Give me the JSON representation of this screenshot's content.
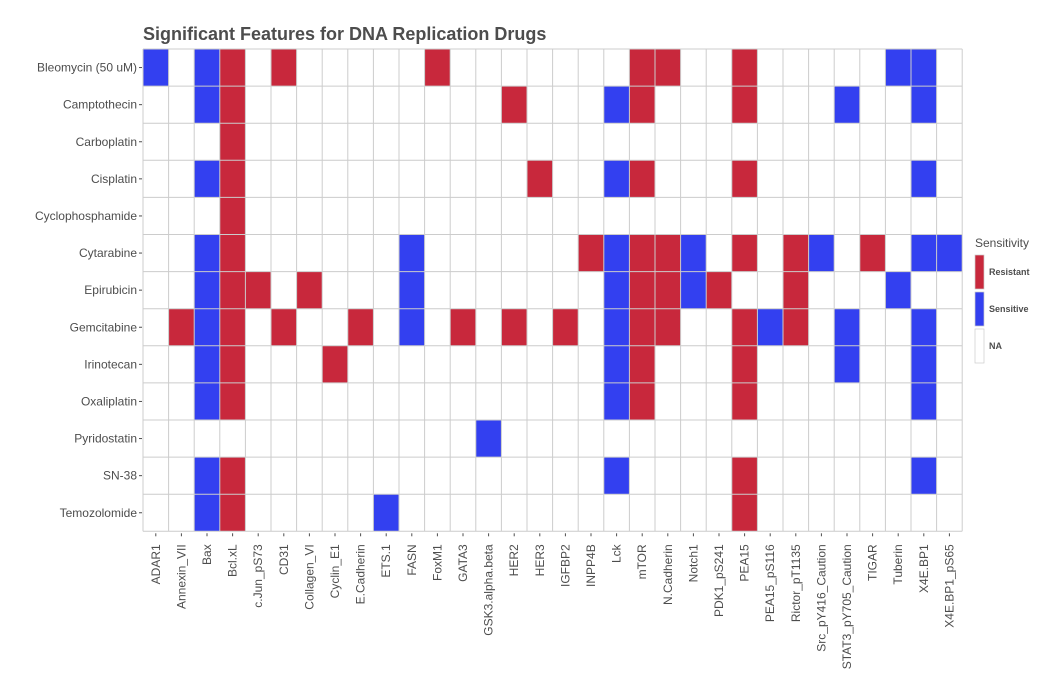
{
  "chart_data": {
    "type": "heatmap",
    "title": "Significant Features for DNA Replication Drugs",
    "xlabel": "",
    "ylabel": "",
    "rows": [
      "Bleomycin (50 uM)",
      "Camptothecin",
      "Carboplatin",
      "Cisplatin",
      "Cyclophosphamide",
      "Cytarabine",
      "Epirubicin",
      "Gemcitabine",
      "Irinotecan",
      "Oxaliplatin",
      "Pyridostatin",
      "SN-38",
      "Temozolomide"
    ],
    "columns": [
      "ADAR1",
      "Annexin_VII",
      "Bax",
      "Bcl.xL",
      "c.Jun_pS73",
      "CD31",
      "Collagen_VI",
      "Cyclin_E1",
      "E.Cadherin",
      "ETS.1",
      "FASN",
      "FoxM1",
      "GATA3",
      "GSK3.alpha.beta",
      "HER2",
      "HER3",
      "IGFBP2",
      "INPP4B",
      "Lck",
      "mTOR",
      "N.Cadherin",
      "Notch1",
      "PDK1_pS241",
      "PEA15",
      "PEA15_pS116",
      "Rictor_pT1135",
      "Src_pY416_Caution",
      "STAT3_pY705_Caution",
      "TIGAR",
      "Tuberin",
      "X4E.BP1",
      "X4E.BP1_pS65"
    ],
    "legend": {
      "title": "Sensitivity",
      "placement": "right",
      "entries": [
        {
          "label": "Resistant",
          "color": "#c8283c"
        },
        {
          "label": "Sensitive",
          "color": "#3340f0"
        },
        {
          "label": "NA",
          "color": "#ffffff"
        }
      ]
    },
    "grid": true,
    "cells": [
      {
        "row": "Bleomycin (50 uM)",
        "col": "ADAR1",
        "value": "Sensitive"
      },
      {
        "row": "Bleomycin (50 uM)",
        "col": "Bax",
        "value": "Sensitive"
      },
      {
        "row": "Bleomycin (50 uM)",
        "col": "Bcl.xL",
        "value": "Resistant"
      },
      {
        "row": "Bleomycin (50 uM)",
        "col": "CD31",
        "value": "Resistant"
      },
      {
        "row": "Bleomycin (50 uM)",
        "col": "FoxM1",
        "value": "Resistant"
      },
      {
        "row": "Bleomycin (50 uM)",
        "col": "mTOR",
        "value": "Resistant"
      },
      {
        "row": "Bleomycin (50 uM)",
        "col": "N.Cadherin",
        "value": "Resistant"
      },
      {
        "row": "Bleomycin (50 uM)",
        "col": "PEA15",
        "value": "Resistant"
      },
      {
        "row": "Bleomycin (50 uM)",
        "col": "Tuberin",
        "value": "Sensitive"
      },
      {
        "row": "Bleomycin (50 uM)",
        "col": "X4E.BP1",
        "value": "Sensitive"
      },
      {
        "row": "Camptothecin",
        "col": "Bax",
        "value": "Sensitive"
      },
      {
        "row": "Camptothecin",
        "col": "Bcl.xL",
        "value": "Resistant"
      },
      {
        "row": "Camptothecin",
        "col": "HER2",
        "value": "Resistant"
      },
      {
        "row": "Camptothecin",
        "col": "Lck",
        "value": "Sensitive"
      },
      {
        "row": "Camptothecin",
        "col": "mTOR",
        "value": "Resistant"
      },
      {
        "row": "Camptothecin",
        "col": "PEA15",
        "value": "Resistant"
      },
      {
        "row": "Camptothecin",
        "col": "STAT3_pY705_Caution",
        "value": "Sensitive"
      },
      {
        "row": "Camptothecin",
        "col": "X4E.BP1",
        "value": "Sensitive"
      },
      {
        "row": "Carboplatin",
        "col": "Bcl.xL",
        "value": "Resistant"
      },
      {
        "row": "Cisplatin",
        "col": "Bax",
        "value": "Sensitive"
      },
      {
        "row": "Cisplatin",
        "col": "Bcl.xL",
        "value": "Resistant"
      },
      {
        "row": "Cisplatin",
        "col": "HER3",
        "value": "Resistant"
      },
      {
        "row": "Cisplatin",
        "col": "Lck",
        "value": "Sensitive"
      },
      {
        "row": "Cisplatin",
        "col": "mTOR",
        "value": "Resistant"
      },
      {
        "row": "Cisplatin",
        "col": "PEA15",
        "value": "Resistant"
      },
      {
        "row": "Cisplatin",
        "col": "X4E.BP1",
        "value": "Sensitive"
      },
      {
        "row": "Cyclophosphamide",
        "col": "Bcl.xL",
        "value": "Resistant"
      },
      {
        "row": "Cytarabine",
        "col": "Bax",
        "value": "Sensitive"
      },
      {
        "row": "Cytarabine",
        "col": "Bcl.xL",
        "value": "Resistant"
      },
      {
        "row": "Cytarabine",
        "col": "FASN",
        "value": "Sensitive"
      },
      {
        "row": "Cytarabine",
        "col": "INPP4B",
        "value": "Resistant"
      },
      {
        "row": "Cytarabine",
        "col": "Lck",
        "value": "Sensitive"
      },
      {
        "row": "Cytarabine",
        "col": "mTOR",
        "value": "Resistant"
      },
      {
        "row": "Cytarabine",
        "col": "N.Cadherin",
        "value": "Resistant"
      },
      {
        "row": "Cytarabine",
        "col": "Notch1",
        "value": "Sensitive"
      },
      {
        "row": "Cytarabine",
        "col": "PEA15",
        "value": "Resistant"
      },
      {
        "row": "Cytarabine",
        "col": "Rictor_pT1135",
        "value": "Resistant"
      },
      {
        "row": "Cytarabine",
        "col": "Src_pY416_Caution",
        "value": "Sensitive"
      },
      {
        "row": "Cytarabine",
        "col": "TIGAR",
        "value": "Resistant"
      },
      {
        "row": "Cytarabine",
        "col": "X4E.BP1",
        "value": "Sensitive"
      },
      {
        "row": "Cytarabine",
        "col": "X4E.BP1_pS65",
        "value": "Sensitive"
      },
      {
        "row": "Epirubicin",
        "col": "Bax",
        "value": "Sensitive"
      },
      {
        "row": "Epirubicin",
        "col": "Bcl.xL",
        "value": "Resistant"
      },
      {
        "row": "Epirubicin",
        "col": "c.Jun_pS73",
        "value": "Resistant"
      },
      {
        "row": "Epirubicin",
        "col": "Collagen_VI",
        "value": "Resistant"
      },
      {
        "row": "Epirubicin",
        "col": "FASN",
        "value": "Sensitive"
      },
      {
        "row": "Epirubicin",
        "col": "Lck",
        "value": "Sensitive"
      },
      {
        "row": "Epirubicin",
        "col": "mTOR",
        "value": "Resistant"
      },
      {
        "row": "Epirubicin",
        "col": "N.Cadherin",
        "value": "Resistant"
      },
      {
        "row": "Epirubicin",
        "col": "Notch1",
        "value": "Sensitive"
      },
      {
        "row": "Epirubicin",
        "col": "PDK1_pS241",
        "value": "Resistant"
      },
      {
        "row": "Epirubicin",
        "col": "Rictor_pT1135",
        "value": "Resistant"
      },
      {
        "row": "Epirubicin",
        "col": "Tuberin",
        "value": "Sensitive"
      },
      {
        "row": "Gemcitabine",
        "col": "Annexin_VII",
        "value": "Resistant"
      },
      {
        "row": "Gemcitabine",
        "col": "Bax",
        "value": "Sensitive"
      },
      {
        "row": "Gemcitabine",
        "col": "Bcl.xL",
        "value": "Resistant"
      },
      {
        "row": "Gemcitabine",
        "col": "CD31",
        "value": "Resistant"
      },
      {
        "row": "Gemcitabine",
        "col": "E.Cadherin",
        "value": "Resistant"
      },
      {
        "row": "Gemcitabine",
        "col": "FASN",
        "value": "Sensitive"
      },
      {
        "row": "Gemcitabine",
        "col": "GATA3",
        "value": "Resistant"
      },
      {
        "row": "Gemcitabine",
        "col": "HER2",
        "value": "Resistant"
      },
      {
        "row": "Gemcitabine",
        "col": "IGFBP2",
        "value": "Resistant"
      },
      {
        "row": "Gemcitabine",
        "col": "Lck",
        "value": "Sensitive"
      },
      {
        "row": "Gemcitabine",
        "col": "mTOR",
        "value": "Resistant"
      },
      {
        "row": "Gemcitabine",
        "col": "N.Cadherin",
        "value": "Resistant"
      },
      {
        "row": "Gemcitabine",
        "col": "PEA15",
        "value": "Resistant"
      },
      {
        "row": "Gemcitabine",
        "col": "PEA15_pS116",
        "value": "Sensitive"
      },
      {
        "row": "Gemcitabine",
        "col": "Rictor_pT1135",
        "value": "Resistant"
      },
      {
        "row": "Gemcitabine",
        "col": "STAT3_pY705_Caution",
        "value": "Sensitive"
      },
      {
        "row": "Gemcitabine",
        "col": "X4E.BP1",
        "value": "Sensitive"
      },
      {
        "row": "Irinotecan",
        "col": "Bax",
        "value": "Sensitive"
      },
      {
        "row": "Irinotecan",
        "col": "Bcl.xL",
        "value": "Resistant"
      },
      {
        "row": "Irinotecan",
        "col": "Cyclin_E1",
        "value": "Resistant"
      },
      {
        "row": "Irinotecan",
        "col": "Lck",
        "value": "Sensitive"
      },
      {
        "row": "Irinotecan",
        "col": "mTOR",
        "value": "Resistant"
      },
      {
        "row": "Irinotecan",
        "col": "PEA15",
        "value": "Resistant"
      },
      {
        "row": "Irinotecan",
        "col": "STAT3_pY705_Caution",
        "value": "Sensitive"
      },
      {
        "row": "Irinotecan",
        "col": "X4E.BP1",
        "value": "Sensitive"
      },
      {
        "row": "Oxaliplatin",
        "col": "Bax",
        "value": "Sensitive"
      },
      {
        "row": "Oxaliplatin",
        "col": "Bcl.xL",
        "value": "Resistant"
      },
      {
        "row": "Oxaliplatin",
        "col": "Lck",
        "value": "Sensitive"
      },
      {
        "row": "Oxaliplatin",
        "col": "mTOR",
        "value": "Resistant"
      },
      {
        "row": "Oxaliplatin",
        "col": "PEA15",
        "value": "Resistant"
      },
      {
        "row": "Oxaliplatin",
        "col": "X4E.BP1",
        "value": "Sensitive"
      },
      {
        "row": "Pyridostatin",
        "col": "GSK3.alpha.beta",
        "value": "Sensitive"
      },
      {
        "row": "SN-38",
        "col": "Bax",
        "value": "Sensitive"
      },
      {
        "row": "SN-38",
        "col": "Bcl.xL",
        "value": "Resistant"
      },
      {
        "row": "SN-38",
        "col": "Lck",
        "value": "Sensitive"
      },
      {
        "row": "SN-38",
        "col": "PEA15",
        "value": "Resistant"
      },
      {
        "row": "SN-38",
        "col": "X4E.BP1",
        "value": "Sensitive"
      },
      {
        "row": "Temozolomide",
        "col": "Bax",
        "value": "Sensitive"
      },
      {
        "row": "Temozolomide",
        "col": "Bcl.xL",
        "value": "Resistant"
      },
      {
        "row": "Temozolomide",
        "col": "ETS.1",
        "value": "Sensitive"
      },
      {
        "row": "Temozolomide",
        "col": "PEA15",
        "value": "Resistant"
      }
    ]
  }
}
